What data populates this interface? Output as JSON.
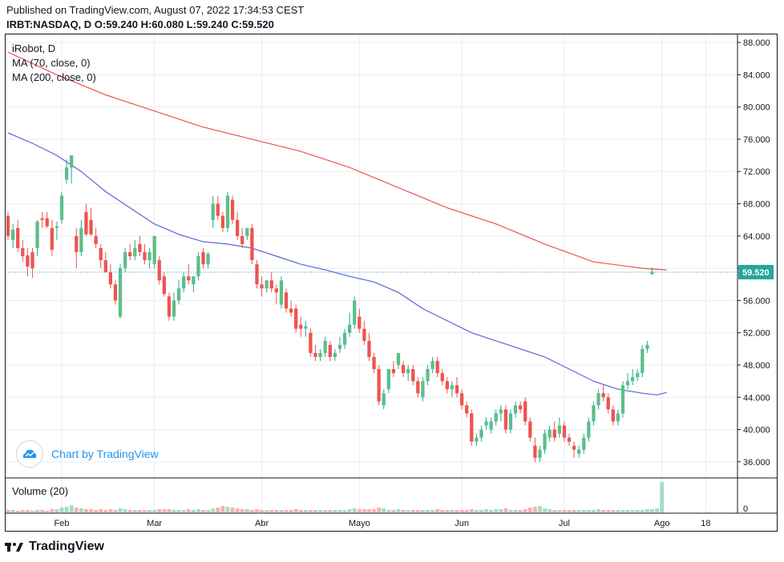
{
  "header": {
    "published": "Published on TradingView.com, August 07, 2022 17:34:53 CEST",
    "ohlc": "IRBT:NASDAQ, D O:59.240 H:60.080 L:59.240 C:59.520"
  },
  "legend": {
    "symbol": "iRobot, D",
    "ma70": "MA (70, close, 0)",
    "ma200": "MA (200, close, 0)"
  },
  "watermark": {
    "text": "Chart by TradingView"
  },
  "volume_label": "Volume (20)",
  "footer": {
    "brand": "TradingView"
  },
  "colors": {
    "up": "#26a69a",
    "up_fill": "#5bbf8b",
    "down": "#ef5350",
    "ma70": "#5b63d8",
    "ma200": "#ef5350",
    "grid": "#e9edf3",
    "last_price_bg": "#26a69a"
  },
  "chart_data": {
    "type": "candlestick",
    "price_axis": {
      "ticks": [
        "88.000",
        "84.000",
        "80.000",
        "76.000",
        "72.000",
        "68.000",
        "64.000",
        "60.000",
        "56.000",
        "52.000",
        "48.000",
        "44.000",
        "40.000",
        "36.000"
      ],
      "range": [
        34.0,
        89.0
      ],
      "last_price": "59.520"
    },
    "volume_axis": {
      "ticks": [
        "0"
      ]
    },
    "time_axis": {
      "ticks": [
        {
          "label": "Feb",
          "index": 11
        },
        {
          "label": "Mar",
          "index": 30
        },
        {
          "label": "Abr",
          "index": 52
        },
        {
          "label": "Mayo",
          "index": 72
        },
        {
          "label": "Jun",
          "index": 93
        },
        {
          "label": "Jul",
          "index": 114
        },
        {
          "label": "Ago",
          "index": 134
        },
        {
          "label": "18",
          "index": 143
        }
      ],
      "count": 150
    },
    "candles": [
      {
        "o": 66.5,
        "h": 67.0,
        "l": 63.5,
        "c": 64.0
      },
      {
        "o": 63.5,
        "h": 65.5,
        "l": 62.5,
        "c": 64.8
      },
      {
        "o": 65.0,
        "h": 66.0,
        "l": 62.0,
        "c": 62.5
      },
      {
        "o": 62.5,
        "h": 63.5,
        "l": 60.8,
        "c": 61.5
      },
      {
        "o": 61.6,
        "h": 62.5,
        "l": 59.0,
        "c": 60.2
      },
      {
        "o": 62.0,
        "h": 62.5,
        "l": 58.8,
        "c": 60.0
      },
      {
        "o": 62.5,
        "h": 66.0,
        "l": 61.5,
        "c": 65.8
      },
      {
        "o": 66.2,
        "h": 67.0,
        "l": 65.0,
        "c": 66.0
      },
      {
        "o": 66.2,
        "h": 67.0,
        "l": 65.0,
        "c": 65.2
      },
      {
        "o": 65.0,
        "h": 66.0,
        "l": 61.5,
        "c": 62.3
      },
      {
        "o": 65.0,
        "h": 65.8,
        "l": 63.5,
        "c": 65.2
      },
      {
        "o": 66.0,
        "h": 69.5,
        "l": 65.5,
        "c": 69.0
      },
      {
        "o": 71.0,
        "h": 73.5,
        "l": 70.5,
        "c": 72.5
      },
      {
        "o": 72.5,
        "h": 74.0,
        "l": 70.5,
        "c": 74.0
      },
      {
        "o": 64.0,
        "h": 65.0,
        "l": 60.0,
        "c": 62.0
      },
      {
        "o": 62.0,
        "h": 66.0,
        "l": 61.5,
        "c": 65.0
      },
      {
        "o": 67.0,
        "h": 68.0,
        "l": 64.0,
        "c": 64.2
      },
      {
        "o": 66.0,
        "h": 67.5,
        "l": 64.0,
        "c": 64.2
      },
      {
        "o": 64.0,
        "h": 65.0,
        "l": 62.5,
        "c": 63.0
      },
      {
        "o": 62.5,
        "h": 63.0,
        "l": 60.0,
        "c": 61.0
      },
      {
        "o": 61.0,
        "h": 62.0,
        "l": 59.5,
        "c": 59.5
      },
      {
        "o": 59.5,
        "h": 60.5,
        "l": 57.5,
        "c": 58.0
      },
      {
        "o": 58.0,
        "h": 58.5,
        "l": 55.5,
        "c": 56.0
      },
      {
        "o": 54.0,
        "h": 60.5,
        "l": 53.8,
        "c": 60.0
      },
      {
        "o": 60.0,
        "h": 62.5,
        "l": 59.5,
        "c": 62.0
      },
      {
        "o": 62.0,
        "h": 63.0,
        "l": 61.0,
        "c": 61.5
      },
      {
        "o": 61.5,
        "h": 63.5,
        "l": 61.0,
        "c": 62.5
      },
      {
        "o": 63.0,
        "h": 64.0,
        "l": 61.5,
        "c": 62.0
      },
      {
        "o": 62.0,
        "h": 63.0,
        "l": 60.5,
        "c": 61.0
      },
      {
        "o": 61.0,
        "h": 62.5,
        "l": 60.0,
        "c": 62.0
      },
      {
        "o": 60.5,
        "h": 64.0,
        "l": 60.0,
        "c": 64.0
      },
      {
        "o": 61.0,
        "h": 61.5,
        "l": 58.0,
        "c": 58.5
      },
      {
        "o": 59.0,
        "h": 59.5,
        "l": 56.5,
        "c": 56.8
      },
      {
        "o": 56.5,
        "h": 57.0,
        "l": 53.5,
        "c": 54.0
      },
      {
        "o": 54.0,
        "h": 57.0,
        "l": 53.5,
        "c": 56.0
      },
      {
        "o": 56.0,
        "h": 58.5,
        "l": 55.5,
        "c": 57.5
      },
      {
        "o": 57.5,
        "h": 59.5,
        "l": 57.0,
        "c": 59.0
      },
      {
        "o": 59.0,
        "h": 60.5,
        "l": 58.0,
        "c": 58.5
      },
      {
        "o": 58.0,
        "h": 59.0,
        "l": 57.0,
        "c": 59.0
      },
      {
        "o": 59.0,
        "h": 62.0,
        "l": 58.5,
        "c": 61.5
      },
      {
        "o": 62.0,
        "h": 62.5,
        "l": 60.0,
        "c": 60.5
      },
      {
        "o": 60.5,
        "h": 62.0,
        "l": 60.0,
        "c": 61.8
      },
      {
        "o": 66.0,
        "h": 69.0,
        "l": 65.0,
        "c": 68.0
      },
      {
        "o": 68.0,
        "h": 69.0,
        "l": 66.0,
        "c": 66.5
      },
      {
        "o": 66.5,
        "h": 67.0,
        "l": 64.5,
        "c": 65.0
      },
      {
        "o": 65.0,
        "h": 69.5,
        "l": 64.5,
        "c": 69.0
      },
      {
        "o": 68.5,
        "h": 69.0,
        "l": 65.5,
        "c": 66.0
      },
      {
        "o": 66.0,
        "h": 67.0,
        "l": 63.5,
        "c": 64.0
      },
      {
        "o": 64.0,
        "h": 65.0,
        "l": 62.5,
        "c": 63.0
      },
      {
        "o": 64.0,
        "h": 65.0,
        "l": 63.5,
        "c": 65.0
      },
      {
        "o": 65.0,
        "h": 65.5,
        "l": 60.5,
        "c": 61.0
      },
      {
        "o": 60.5,
        "h": 61.0,
        "l": 57.5,
        "c": 58.0
      },
      {
        "o": 58.0,
        "h": 59.0,
        "l": 56.5,
        "c": 57.5
      },
      {
        "o": 57.5,
        "h": 58.5,
        "l": 57.0,
        "c": 58.5
      },
      {
        "o": 58.5,
        "h": 59.5,
        "l": 57.0,
        "c": 57.5
      },
      {
        "o": 57.5,
        "h": 58.0,
        "l": 55.5,
        "c": 57.0
      },
      {
        "o": 55.5,
        "h": 59.0,
        "l": 55.0,
        "c": 58.5
      },
      {
        "o": 57.0,
        "h": 57.5,
        "l": 54.5,
        "c": 55.0
      },
      {
        "o": 55.0,
        "h": 56.0,
        "l": 54.0,
        "c": 54.5
      },
      {
        "o": 55.0,
        "h": 55.5,
        "l": 52.0,
        "c": 52.5
      },
      {
        "o": 53.0,
        "h": 54.0,
        "l": 51.5,
        "c": 52.5
      },
      {
        "o": 52.5,
        "h": 53.5,
        "l": 51.5,
        "c": 52.8
      },
      {
        "o": 52.0,
        "h": 52.5,
        "l": 49.0,
        "c": 49.5
      },
      {
        "o": 49.5,
        "h": 50.5,
        "l": 48.5,
        "c": 49.0
      },
      {
        "o": 49.0,
        "h": 50.0,
        "l": 48.5,
        "c": 49.5
      },
      {
        "o": 49.5,
        "h": 51.5,
        "l": 49.0,
        "c": 51.0
      },
      {
        "o": 50.5,
        "h": 51.0,
        "l": 48.5,
        "c": 49.0
      },
      {
        "o": 49.0,
        "h": 50.0,
        "l": 48.5,
        "c": 49.5
      },
      {
        "o": 50.0,
        "h": 51.5,
        "l": 49.5,
        "c": 50.5
      },
      {
        "o": 50.5,
        "h": 52.5,
        "l": 50.0,
        "c": 52.0
      },
      {
        "o": 52.0,
        "h": 54.5,
        "l": 51.5,
        "c": 53.0
      },
      {
        "o": 53.0,
        "h": 56.5,
        "l": 52.5,
        "c": 56.0
      },
      {
        "o": 54.0,
        "h": 55.0,
        "l": 52.0,
        "c": 52.5
      },
      {
        "o": 52.5,
        "h": 53.5,
        "l": 50.5,
        "c": 51.0
      },
      {
        "o": 51.0,
        "h": 52.0,
        "l": 48.5,
        "c": 49.0
      },
      {
        "o": 49.0,
        "h": 49.5,
        "l": 47.0,
        "c": 47.5
      },
      {
        "o": 47.5,
        "h": 48.0,
        "l": 43.0,
        "c": 43.5
      },
      {
        "o": 43.0,
        "h": 45.0,
        "l": 42.5,
        "c": 44.5
      },
      {
        "o": 45.0,
        "h": 47.5,
        "l": 44.5,
        "c": 47.5
      },
      {
        "o": 47.5,
        "h": 48.5,
        "l": 46.5,
        "c": 47.0
      },
      {
        "o": 48.0,
        "h": 49.5,
        "l": 47.5,
        "c": 49.5
      },
      {
        "o": 48.0,
        "h": 48.5,
        "l": 46.5,
        "c": 47.0
      },
      {
        "o": 47.0,
        "h": 48.0,
        "l": 46.0,
        "c": 47.5
      },
      {
        "o": 47.5,
        "h": 48.0,
        "l": 45.5,
        "c": 46.0
      },
      {
        "o": 46.0,
        "h": 46.5,
        "l": 44.0,
        "c": 44.5
      },
      {
        "o": 44.0,
        "h": 46.5,
        "l": 43.5,
        "c": 46.0
      },
      {
        "o": 46.0,
        "h": 48.0,
        "l": 45.5,
        "c": 47.5
      },
      {
        "o": 47.5,
        "h": 49.0,
        "l": 47.0,
        "c": 48.5
      },
      {
        "o": 48.5,
        "h": 49.0,
        "l": 46.5,
        "c": 47.0
      },
      {
        "o": 47.0,
        "h": 47.5,
        "l": 45.5,
        "c": 46.0
      },
      {
        "o": 46.0,
        "h": 46.5,
        "l": 44.5,
        "c": 45.0
      },
      {
        "o": 45.0,
        "h": 46.0,
        "l": 44.0,
        "c": 45.5
      },
      {
        "o": 45.5,
        "h": 46.5,
        "l": 44.0,
        "c": 44.5
      },
      {
        "o": 44.5,
        "h": 45.0,
        "l": 42.5,
        "c": 43.0
      },
      {
        "o": 43.0,
        "h": 43.5,
        "l": 41.5,
        "c": 42.0
      },
      {
        "o": 42.0,
        "h": 42.5,
        "l": 38.0,
        "c": 38.5
      },
      {
        "o": 38.5,
        "h": 39.5,
        "l": 38.0,
        "c": 39.0
      },
      {
        "o": 39.0,
        "h": 40.5,
        "l": 38.5,
        "c": 40.0
      },
      {
        "o": 40.5,
        "h": 41.5,
        "l": 40.0,
        "c": 41.0
      },
      {
        "o": 40.0,
        "h": 41.5,
        "l": 39.5,
        "c": 41.0
      },
      {
        "o": 41.0,
        "h": 42.5,
        "l": 40.5,
        "c": 42.0
      },
      {
        "o": 42.0,
        "h": 43.0,
        "l": 41.0,
        "c": 42.5
      },
      {
        "o": 42.5,
        "h": 43.0,
        "l": 39.5,
        "c": 40.0
      },
      {
        "o": 40.0,
        "h": 42.5,
        "l": 39.5,
        "c": 42.0
      },
      {
        "o": 42.0,
        "h": 43.5,
        "l": 41.5,
        "c": 43.0
      },
      {
        "o": 43.0,
        "h": 43.5,
        "l": 42.0,
        "c": 42.5
      },
      {
        "o": 43.5,
        "h": 44.0,
        "l": 40.5,
        "c": 41.0
      },
      {
        "o": 41.0,
        "h": 41.5,
        "l": 38.5,
        "c": 39.0
      },
      {
        "o": 38.0,
        "h": 39.0,
        "l": 36.0,
        "c": 36.5
      },
      {
        "o": 36.5,
        "h": 38.0,
        "l": 36.0,
        "c": 37.5
      },
      {
        "o": 37.5,
        "h": 40.0,
        "l": 37.0,
        "c": 39.5
      },
      {
        "o": 39.0,
        "h": 40.5,
        "l": 38.5,
        "c": 40.0
      },
      {
        "o": 40.0,
        "h": 41.0,
        "l": 38.5,
        "c": 39.0
      },
      {
        "o": 39.5,
        "h": 41.5,
        "l": 39.0,
        "c": 40.5
      },
      {
        "o": 40.5,
        "h": 41.0,
        "l": 38.5,
        "c": 39.0
      },
      {
        "o": 39.0,
        "h": 39.5,
        "l": 38.0,
        "c": 38.5
      },
      {
        "o": 38.0,
        "h": 38.5,
        "l": 36.5,
        "c": 37.5
      },
      {
        "o": 37.0,
        "h": 38.0,
        "l": 36.5,
        "c": 37.5
      },
      {
        "o": 37.5,
        "h": 39.5,
        "l": 37.0,
        "c": 39.0
      },
      {
        "o": 39.0,
        "h": 41.5,
        "l": 38.5,
        "c": 41.0
      },
      {
        "o": 41.0,
        "h": 43.5,
        "l": 40.5,
        "c": 43.0
      },
      {
        "o": 43.0,
        "h": 45.0,
        "l": 42.5,
        "c": 44.5
      },
      {
        "o": 44.5,
        "h": 45.5,
        "l": 43.5,
        "c": 44.0
      },
      {
        "o": 44.0,
        "h": 44.5,
        "l": 42.0,
        "c": 42.5
      },
      {
        "o": 42.5,
        "h": 43.0,
        "l": 40.5,
        "c": 41.0
      },
      {
        "o": 41.0,
        "h": 42.5,
        "l": 40.5,
        "c": 42.0
      },
      {
        "o": 42.0,
        "h": 46.0,
        "l": 41.5,
        "c": 45.5
      },
      {
        "o": 45.5,
        "h": 47.0,
        "l": 45.0,
        "c": 46.0
      },
      {
        "o": 46.0,
        "h": 47.5,
        "l": 45.5,
        "c": 46.5
      },
      {
        "o": 46.5,
        "h": 47.5,
        "l": 46.0,
        "c": 47.0
      },
      {
        "o": 47.0,
        "h": 50.5,
        "l": 46.5,
        "c": 50.0
      },
      {
        "o": 50.0,
        "h": 51.0,
        "l": 49.5,
        "c": 50.5
      },
      {
        "o": 59.24,
        "h": 60.08,
        "l": 59.24,
        "c": 59.52
      }
    ],
    "volume": [
      3,
      3,
      2,
      3,
      3,
      2,
      3,
      3,
      2,
      4,
      4,
      6,
      7,
      9,
      6,
      5,
      4,
      4,
      3,
      4,
      3,
      4,
      3,
      5,
      4,
      3,
      3,
      3,
      3,
      3,
      3,
      4,
      4,
      4,
      3,
      3,
      3,
      4,
      3,
      4,
      3,
      3,
      5,
      6,
      8,
      7,
      6,
      5,
      4,
      4,
      3,
      4,
      3,
      3,
      3,
      3,
      3,
      3,
      3,
      4,
      3,
      3,
      3,
      3,
      3,
      3,
      3,
      3,
      3,
      3,
      4,
      5,
      4,
      4,
      4,
      4,
      6,
      5,
      3,
      3,
      4,
      3,
      3,
      3,
      3,
      3,
      3,
      3,
      4,
      3,
      3,
      3,
      3,
      3,
      3,
      4,
      3,
      3,
      4,
      3,
      4,
      4,
      5,
      3,
      3,
      3,
      4,
      6,
      7,
      8,
      5,
      4,
      3,
      3,
      3,
      3,
      3,
      3,
      3,
      3,
      3,
      4,
      3,
      3,
      3,
      3,
      3,
      3,
      3,
      3,
      3,
      4,
      4,
      5,
      38
    ],
    "ma70": [
      [
        0,
        76.8
      ],
      [
        5,
        75.5
      ],
      [
        10,
        74.0
      ],
      [
        15,
        72.0
      ],
      [
        20,
        69.5
      ],
      [
        25,
        67.5
      ],
      [
        30,
        65.5
      ],
      [
        35,
        64.2
      ],
      [
        40,
        63.3
      ],
      [
        45,
        63.0
      ],
      [
        50,
        62.5
      ],
      [
        55,
        61.5
      ],
      [
        60,
        60.5
      ],
      [
        65,
        59.8
      ],
      [
        70,
        59.0
      ],
      [
        75,
        58.3
      ],
      [
        80,
        57.0
      ],
      [
        85,
        55.0
      ],
      [
        90,
        53.5
      ],
      [
        95,
        52.0
      ],
      [
        100,
        51.0
      ],
      [
        105,
        50.0
      ],
      [
        110,
        49.0
      ],
      [
        115,
        47.5
      ],
      [
        120,
        46.0
      ],
      [
        125,
        45.0
      ],
      [
        130,
        44.5
      ],
      [
        133,
        44.3
      ],
      [
        135,
        44.6
      ]
    ],
    "ma200": [
      [
        0,
        86.8
      ],
      [
        10,
        84.0
      ],
      [
        20,
        81.5
      ],
      [
        30,
        79.5
      ],
      [
        40,
        77.5
      ],
      [
        50,
        76.0
      ],
      [
        60,
        74.5
      ],
      [
        70,
        72.5
      ],
      [
        80,
        70.0
      ],
      [
        90,
        67.5
      ],
      [
        100,
        65.5
      ],
      [
        110,
        63.0
      ],
      [
        120,
        60.8
      ],
      [
        130,
        60.0
      ],
      [
        135,
        59.8
      ]
    ]
  }
}
